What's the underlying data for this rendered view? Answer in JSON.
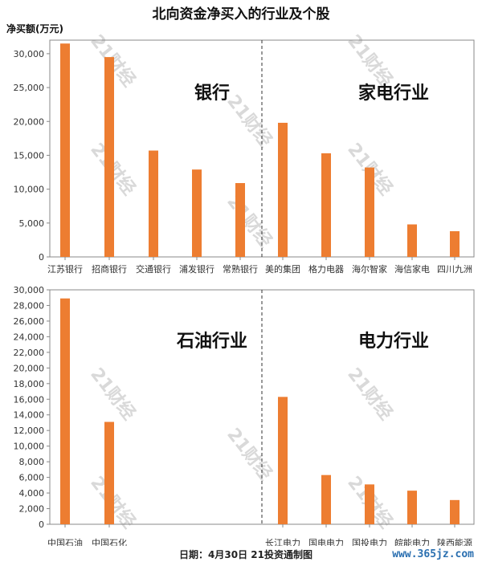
{
  "title": "北向资金净买入的行业及个股",
  "unit_label": "净买额(万元)",
  "source": "日期：4月30日 21投资通制图",
  "website": "www.365jz.com",
  "watermark_text": "21财经",
  "colors": {
    "bar": "#ED7D31",
    "axis": "#888888",
    "footer_bg": "#FFFFFF",
    "website": "#2A6FB0"
  },
  "chart_data": [
    {
      "type": "bar",
      "ylim": [
        0,
        32000
      ],
      "yticks": [
        0,
        5000,
        10000,
        15000,
        20000,
        25000,
        30000
      ],
      "ytick_labels": [
        "0",
        "5,000",
        "10,000",
        "15,000",
        "20,000",
        "25,000",
        "30,000"
      ],
      "groups": [
        {
          "label": "银行",
          "categories": [
            "江苏银行",
            "招商银行",
            "交通银行",
            "浦发银行",
            "常熟银行"
          ],
          "values": [
            31500,
            29500,
            15700,
            12900,
            10900
          ]
        },
        {
          "label": "家电行业",
          "categories": [
            "美的集团",
            "格力电器",
            "海尔智家",
            "海信家电",
            "四川九洲"
          ],
          "values": [
            19800,
            15300,
            13200,
            4800,
            3800
          ]
        }
      ]
    },
    {
      "type": "bar",
      "ylim": [
        0,
        30000
      ],
      "yticks": [
        0,
        2000,
        4000,
        6000,
        8000,
        10000,
        12000,
        14000,
        16000,
        18000,
        20000,
        22000,
        24000,
        26000,
        28000,
        30000
      ],
      "ytick_labels": [
        "0",
        "2,000",
        "4,000",
        "6,000",
        "8,000",
        "10,000",
        "12,000",
        "14,000",
        "16,000",
        "18,000",
        "20,000",
        "22,000",
        "24,000",
        "26,000",
        "28,000",
        "30,000"
      ],
      "groups": [
        {
          "label": "石油行业",
          "categories": [
            "中国石油",
            "中国石化",
            "",
            "",
            ""
          ],
          "values": [
            28900,
            13100,
            null,
            null,
            null
          ]
        },
        {
          "label": "电力行业",
          "categories": [
            "长江电力",
            "国电电力",
            "国投电力",
            "皖能电力",
            "陕西能源"
          ],
          "values": [
            16300,
            6300,
            5100,
            4300,
            3100
          ]
        }
      ]
    }
  ]
}
